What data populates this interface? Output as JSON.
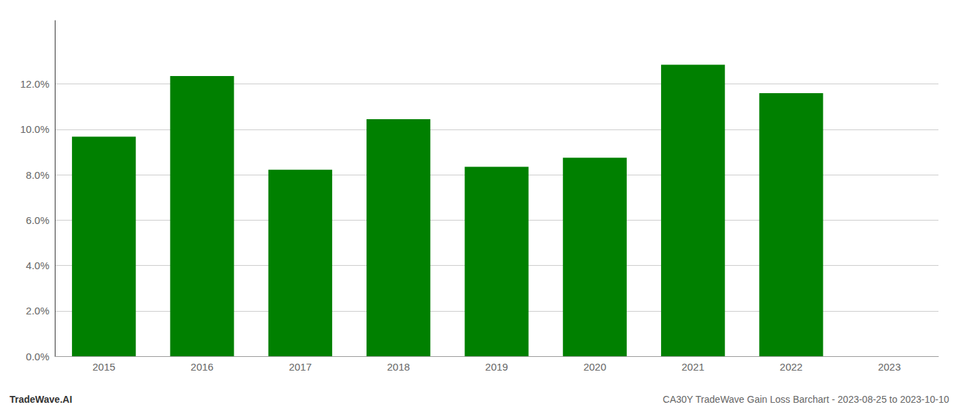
{
  "chart_data": {
    "type": "bar",
    "categories": [
      "2015",
      "2016",
      "2017",
      "2018",
      "2019",
      "2020",
      "2021",
      "2022",
      "2023"
    ],
    "values": [
      0.0968,
      0.1235,
      0.0822,
      0.1045,
      0.0835,
      0.0875,
      0.1285,
      0.116,
      null
    ],
    "color": "#008000",
    "ylim": [
      0,
      0.148
    ],
    "yticks": [
      {
        "value": 0,
        "label": "0.0%"
      },
      {
        "value": 0.02,
        "label": "2.0%"
      },
      {
        "value": 0.04,
        "label": "4.0%"
      },
      {
        "value": 0.06,
        "label": "6.0%"
      },
      {
        "value": 0.08,
        "label": "8.0%"
      },
      {
        "value": 0.1,
        "label": "10.0%"
      },
      {
        "value": 0.12,
        "label": "12.0%"
      }
    ],
    "grid": true,
    "annotations": [
      "TradeWave.AI",
      "CA30Y TradeWave Gain Loss Barchart - 2023-08-25 to 2023-10-10"
    ]
  }
}
